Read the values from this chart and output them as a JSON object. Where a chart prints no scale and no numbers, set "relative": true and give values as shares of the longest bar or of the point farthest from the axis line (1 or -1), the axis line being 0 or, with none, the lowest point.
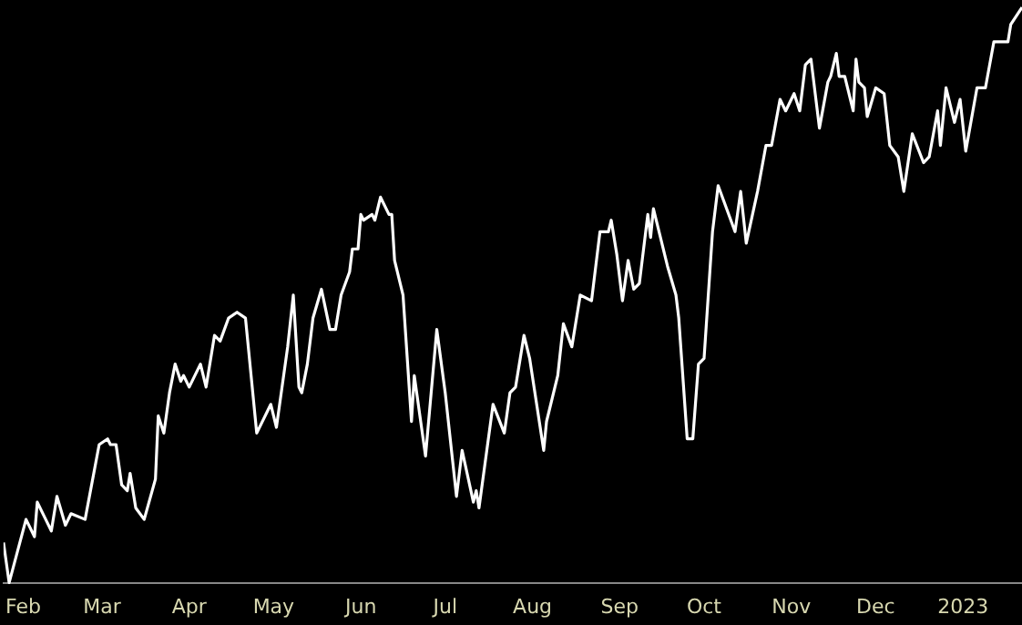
{
  "chart_data": {
    "type": "line",
    "relative": true,
    "legend": false,
    "grid": false,
    "marker": "none",
    "line_style": "solid",
    "xlim": [
      "2022-01-25",
      "2023-01-22"
    ],
    "xticks": [
      {
        "value": "2022-02-01",
        "label": "Feb"
      },
      {
        "value": "2022-03-01",
        "label": "Mar"
      },
      {
        "value": "2022-04-01",
        "label": "Apr"
      },
      {
        "value": "2022-05-01",
        "label": "May"
      },
      {
        "value": "2022-06-01",
        "label": "Jun"
      },
      {
        "value": "2022-07-01",
        "label": "Jul"
      },
      {
        "value": "2022-08-01",
        "label": "Aug"
      },
      {
        "value": "2022-09-01",
        "label": "Sep"
      },
      {
        "value": "2022-10-01",
        "label": "Oct"
      },
      {
        "value": "2022-11-01",
        "label": "Nov"
      },
      {
        "value": "2022-12-01",
        "label": "Dec"
      },
      {
        "value": "2023-01-01",
        "label": "2023"
      }
    ],
    "x": [
      "2022-01-25",
      "2022-01-27",
      "2022-02-02",
      "2022-02-05",
      "2022-02-06",
      "2022-02-09",
      "2022-02-11",
      "2022-02-13",
      "2022-02-16",
      "2022-02-18",
      "2022-02-23",
      "2022-02-28",
      "2022-03-03",
      "2022-03-04",
      "2022-03-06",
      "2022-03-08",
      "2022-03-10",
      "2022-03-11",
      "2022-03-13",
      "2022-03-16",
      "2022-03-20",
      "2022-03-21",
      "2022-03-23",
      "2022-03-25",
      "2022-03-27",
      "2022-03-29",
      "2022-03-30",
      "2022-04-01",
      "2022-04-05",
      "2022-04-07",
      "2022-04-10",
      "2022-04-12",
      "2022-04-15",
      "2022-04-18",
      "2022-04-21",
      "2022-04-25",
      "2022-04-30",
      "2022-05-02",
      "2022-05-06",
      "2022-05-08",
      "2022-05-10",
      "2022-05-11",
      "2022-05-13",
      "2022-05-15",
      "2022-05-18",
      "2022-05-21",
      "2022-05-23",
      "2022-05-25",
      "2022-05-28",
      "2022-05-29",
      "2022-05-31",
      "2022-06-01",
      "2022-06-02",
      "2022-06-05",
      "2022-06-06",
      "2022-06-08",
      "2022-06-11",
      "2022-06-12",
      "2022-06-13",
      "2022-06-16",
      "2022-06-19",
      "2022-06-20",
      "2022-06-24",
      "2022-06-28",
      "2022-07-01",
      "2022-07-05",
      "2022-07-07",
      "2022-07-11",
      "2022-07-12",
      "2022-07-13",
      "2022-07-18",
      "2022-07-22",
      "2022-07-24",
      "2022-07-26",
      "2022-07-29",
      "2022-07-31",
      "2022-08-05",
      "2022-08-06",
      "2022-08-10",
      "2022-08-12",
      "2022-08-15",
      "2022-08-18",
      "2022-08-22",
      "2022-08-25",
      "2022-08-28",
      "2022-08-29",
      "2022-08-31",
      "2022-09-02",
      "2022-09-04",
      "2022-09-06",
      "2022-09-08",
      "2022-09-11",
      "2022-09-12",
      "2022-09-13",
      "2022-09-18",
      "2022-09-21",
      "2022-09-22",
      "2022-09-25",
      "2022-09-27",
      "2022-09-29",
      "2022-10-01",
      "2022-10-04",
      "2022-10-06",
      "2022-10-09",
      "2022-10-12",
      "2022-10-14",
      "2022-10-16",
      "2022-10-20",
      "2022-10-23",
      "2022-10-25",
      "2022-10-28",
      "2022-10-30",
      "2022-11-02",
      "2022-11-04",
      "2022-11-06",
      "2022-11-08",
      "2022-11-11",
      "2022-11-14",
      "2022-11-15",
      "2022-11-17",
      "2022-11-18",
      "2022-11-20",
      "2022-11-23",
      "2022-11-24",
      "2022-11-25",
      "2022-11-27",
      "2022-11-28",
      "2022-12-01",
      "2022-12-04",
      "2022-12-06",
      "2022-12-09",
      "2022-12-11",
      "2022-12-14",
      "2022-12-18",
      "2022-12-20",
      "2022-12-23",
      "2022-12-24",
      "2022-12-26",
      "2022-12-29",
      "2022-12-31",
      "2023-01-02",
      "2023-01-06",
      "2023-01-09",
      "2023-01-12",
      "2023-01-17",
      "2023-01-18",
      "2023-01-22"
    ],
    "series": [
      {
        "color": "#ffffff",
        "values": [
          0.07,
          0,
          0.11,
          0.08,
          0.14,
          0.11,
          0.09,
          0.15,
          0.1,
          0.12,
          0.11,
          0.24,
          0.25,
          0.24,
          0.24,
          0.17,
          0.16,
          0.19,
          0.13,
          0.11,
          0.18,
          0.29,
          0.26,
          0.33,
          0.38,
          0.35,
          0.36,
          0.34,
          0.38,
          0.34,
          0.43,
          0.42,
          0.46,
          0.47,
          0.46,
          0.26,
          0.31,
          0.27,
          0.41,
          0.5,
          0.34,
          0.33,
          0.38,
          0.46,
          0.51,
          0.44,
          0.44,
          0.5,
          0.54,
          0.58,
          0.58,
          0.64,
          0.63,
          0.64,
          0.63,
          0.67,
          0.64,
          0.64,
          0.56,
          0.5,
          0.28,
          0.36,
          0.22,
          0.44,
          0.33,
          0.15,
          0.23,
          0.14,
          0.16,
          0.13,
          0.31,
          0.26,
          0.33,
          0.34,
          0.43,
          0.39,
          0.23,
          0.28,
          0.36,
          0.45,
          0.41,
          0.5,
          0.49,
          0.61,
          0.61,
          0.63,
          0.57,
          0.49,
          0.56,
          0.51,
          0.52,
          0.64,
          0.6,
          0.65,
          0.55,
          0.5,
          0.46,
          0.25,
          0.25,
          0.38,
          0.39,
          0.61,
          0.69,
          0.65,
          0.61,
          0.68,
          0.59,
          0.68,
          0.76,
          0.76,
          0.84,
          0.82,
          0.85,
          0.82,
          0.9,
          0.91,
          0.79,
          0.87,
          0.88,
          0.92,
          0.88,
          0.88,
          0.82,
          0.91,
          0.87,
          0.86,
          0.81,
          0.86,
          0.85,
          0.76,
          0.74,
          0.68,
          0.78,
          0.73,
          0.74,
          0.82,
          0.76,
          0.86,
          0.8,
          0.84,
          0.75,
          0.86,
          0.86,
          0.94,
          0.94,
          0.97,
          1
        ]
      }
    ]
  }
}
